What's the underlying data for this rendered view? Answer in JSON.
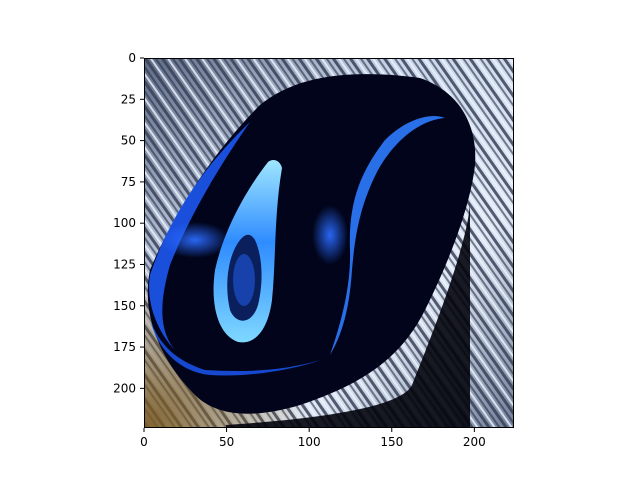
{
  "figure": {
    "background": "#ffffff",
    "axis_color": "#000000"
  },
  "image": {
    "subject": "computer mouse on a wooden surface, inverted / contrast-normalized colors",
    "palette": {
      "mouse_body": "#01041a",
      "mouse_highlight": "#1f6dff",
      "wheel_highlight": "#7fd8ff",
      "wood_light": "#c9d6ea",
      "wood_dark": "#3a4158",
      "wood_corner": "#8a6a35"
    }
  },
  "chart_data": {
    "type": "image",
    "title": "",
    "xlabel": "",
    "ylabel": "",
    "xlim": [
      0,
      224
    ],
    "ylim": [
      224,
      0
    ],
    "xticks": [
      0,
      50,
      100,
      150,
      200
    ],
    "yticks": [
      0,
      25,
      50,
      75,
      100,
      125,
      150,
      175,
      200
    ],
    "grid": false,
    "legend": "none"
  }
}
